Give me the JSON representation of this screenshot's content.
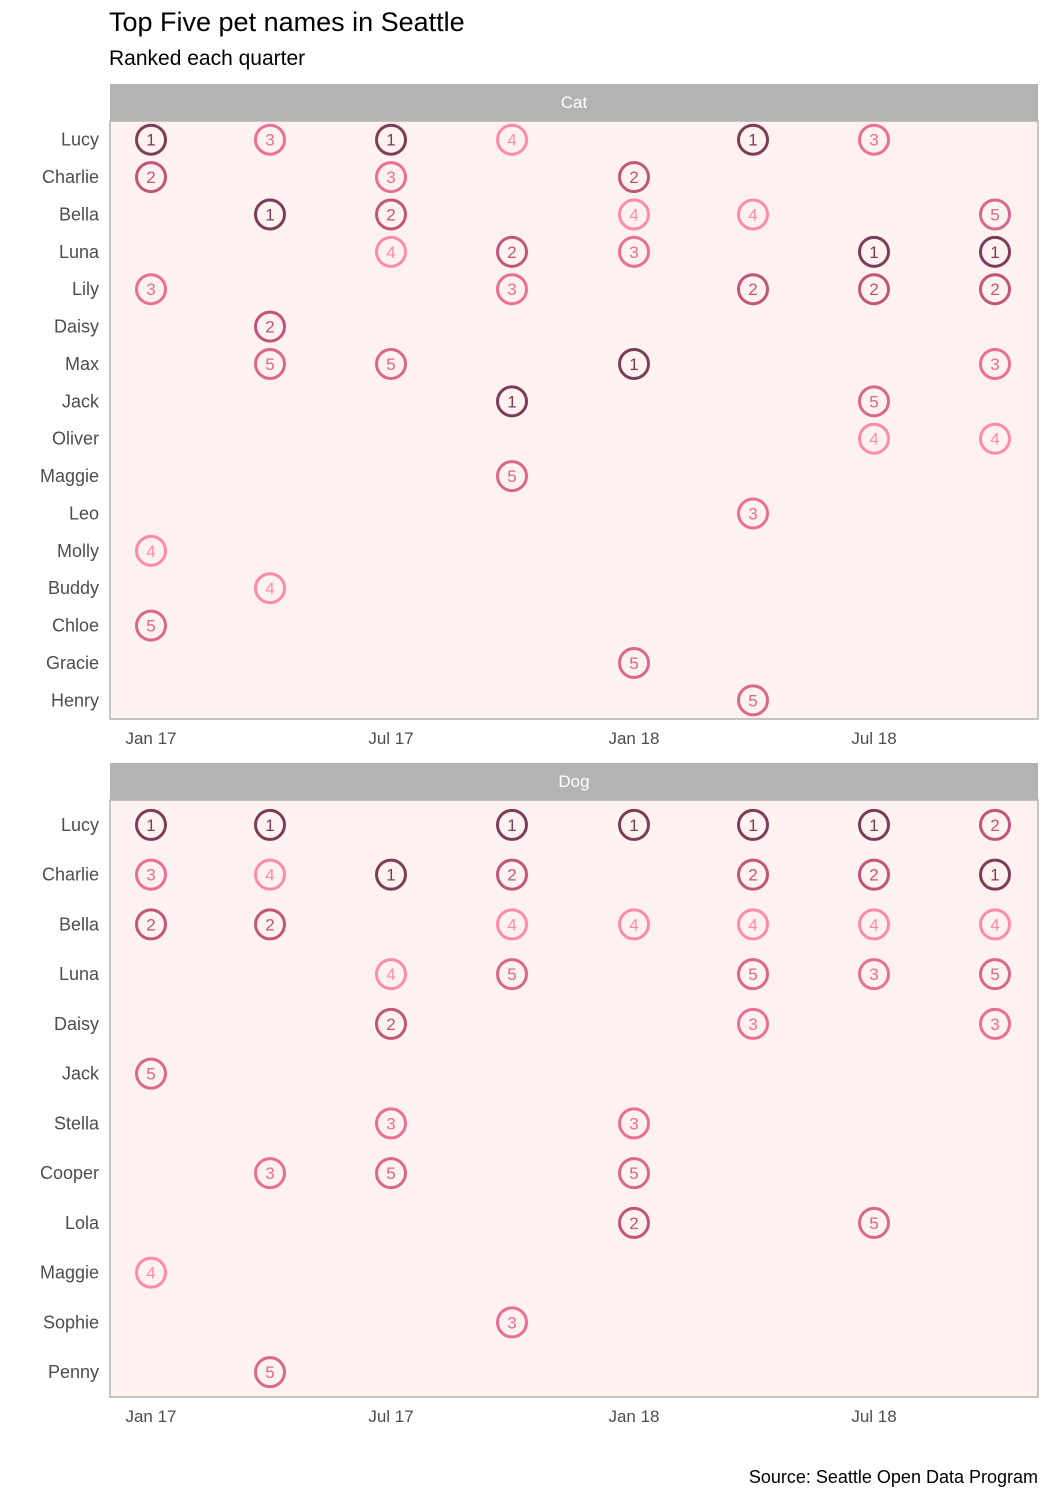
{
  "title": "Top Five pet names in Seattle",
  "subtitle": "Ranked each quarter",
  "caption": "Source: Seattle Open Data Program",
  "colors": {
    "panel_bg": "#fdf2ef",
    "strip_bg": "#b3b3b3",
    "rank_1": "#7d3d5a",
    "rank_2": "#c1557c",
    "rank_3": "#ea6e98",
    "rank_4": "#ff8ab0",
    "rank_5": "#d9678e"
  },
  "chart_data": [
    {
      "type": "scatter",
      "panel": "Cat",
      "x": [
        "2017-Q1",
        "2017-Q2",
        "2017-Q3",
        "2017-Q4",
        "2018-Q1",
        "2018-Q2",
        "2018-Q3",
        "2018-Q4"
      ],
      "x_ticks": [
        "Jan 17",
        "Jul 17",
        "Jan 18",
        "Jul 18"
      ],
      "names": [
        "Lucy",
        "Charlie",
        "Bella",
        "Luna",
        "Lily",
        "Daisy",
        "Max",
        "Jack",
        "Oliver",
        "Maggie",
        "Leo",
        "Molly",
        "Buddy",
        "Chloe",
        "Gracie",
        "Henry"
      ],
      "ranks": [
        [
          "Lucy",
          0,
          1
        ],
        [
          "Lucy",
          1,
          3
        ],
        [
          "Lucy",
          2,
          1
        ],
        [
          "Lucy",
          3,
          4
        ],
        [
          "Lucy",
          5,
          1
        ],
        [
          "Lucy",
          6,
          3
        ],
        [
          "Charlie",
          0,
          2
        ],
        [
          "Charlie",
          2,
          3
        ],
        [
          "Charlie",
          4,
          2
        ],
        [
          "Bella",
          1,
          1
        ],
        [
          "Bella",
          2,
          2
        ],
        [
          "Bella",
          4,
          4
        ],
        [
          "Bella",
          5,
          4
        ],
        [
          "Bella",
          7,
          5
        ],
        [
          "Luna",
          2,
          4
        ],
        [
          "Luna",
          3,
          2
        ],
        [
          "Luna",
          4,
          3
        ],
        [
          "Luna",
          6,
          1
        ],
        [
          "Luna",
          7,
          1
        ],
        [
          "Lily",
          0,
          3
        ],
        [
          "Lily",
          3,
          3
        ],
        [
          "Lily",
          5,
          2
        ],
        [
          "Lily",
          6,
          2
        ],
        [
          "Lily",
          7,
          2
        ],
        [
          "Daisy",
          1,
          2
        ],
        [
          "Max",
          1,
          5
        ],
        [
          "Max",
          2,
          5
        ],
        [
          "Max",
          4,
          1
        ],
        [
          "Max",
          7,
          3
        ],
        [
          "Jack",
          3,
          1
        ],
        [
          "Jack",
          6,
          5
        ],
        [
          "Oliver",
          6,
          4
        ],
        [
          "Oliver",
          7,
          4
        ],
        [
          "Maggie",
          3,
          5
        ],
        [
          "Leo",
          5,
          3
        ],
        [
          "Molly",
          0,
          4
        ],
        [
          "Buddy",
          1,
          4
        ],
        [
          "Chloe",
          0,
          5
        ],
        [
          "Gracie",
          4,
          5
        ],
        [
          "Henry",
          5,
          5
        ]
      ]
    },
    {
      "type": "scatter",
      "panel": "Dog",
      "x": [
        "2017-Q1",
        "2017-Q2",
        "2017-Q3",
        "2017-Q4",
        "2018-Q1",
        "2018-Q2",
        "2018-Q3",
        "2018-Q4"
      ],
      "x_ticks": [
        "Jan 17",
        "Jul 17",
        "Jan 18",
        "Jul 18"
      ],
      "names": [
        "Lucy",
        "Charlie",
        "Bella",
        "Luna",
        "Daisy",
        "Jack",
        "Stella",
        "Cooper",
        "Lola",
        "Maggie",
        "Sophie",
        "Penny"
      ],
      "ranks": [
        [
          "Lucy",
          0,
          1
        ],
        [
          "Lucy",
          1,
          1
        ],
        [
          "Lucy",
          3,
          1
        ],
        [
          "Lucy",
          4,
          1
        ],
        [
          "Lucy",
          5,
          1
        ],
        [
          "Lucy",
          6,
          1
        ],
        [
          "Lucy",
          7,
          2
        ],
        [
          "Charlie",
          0,
          3
        ],
        [
          "Charlie",
          1,
          4
        ],
        [
          "Charlie",
          2,
          1
        ],
        [
          "Charlie",
          3,
          2
        ],
        [
          "Charlie",
          5,
          2
        ],
        [
          "Charlie",
          6,
          2
        ],
        [
          "Charlie",
          7,
          1
        ],
        [
          "Bella",
          0,
          2
        ],
        [
          "Bella",
          1,
          2
        ],
        [
          "Bella",
          3,
          4
        ],
        [
          "Bella",
          4,
          4
        ],
        [
          "Bella",
          5,
          4
        ],
        [
          "Bella",
          6,
          4
        ],
        [
          "Bella",
          7,
          4
        ],
        [
          "Luna",
          2,
          4
        ],
        [
          "Luna",
          3,
          5
        ],
        [
          "Luna",
          5,
          5
        ],
        [
          "Luna",
          6,
          3
        ],
        [
          "Luna",
          7,
          5
        ],
        [
          "Daisy",
          2,
          2
        ],
        [
          "Daisy",
          5,
          3
        ],
        [
          "Daisy",
          7,
          3
        ],
        [
          "Jack",
          0,
          5
        ],
        [
          "Stella",
          2,
          3
        ],
        [
          "Stella",
          4,
          3
        ],
        [
          "Cooper",
          1,
          3
        ],
        [
          "Cooper",
          2,
          5
        ],
        [
          "Cooper",
          4,
          5
        ],
        [
          "Lola",
          4,
          2
        ],
        [
          "Lola",
          6,
          5
        ],
        [
          "Maggie",
          0,
          4
        ],
        [
          "Sophie",
          3,
          3
        ],
        [
          "Penny",
          1,
          5
        ]
      ]
    }
  ]
}
